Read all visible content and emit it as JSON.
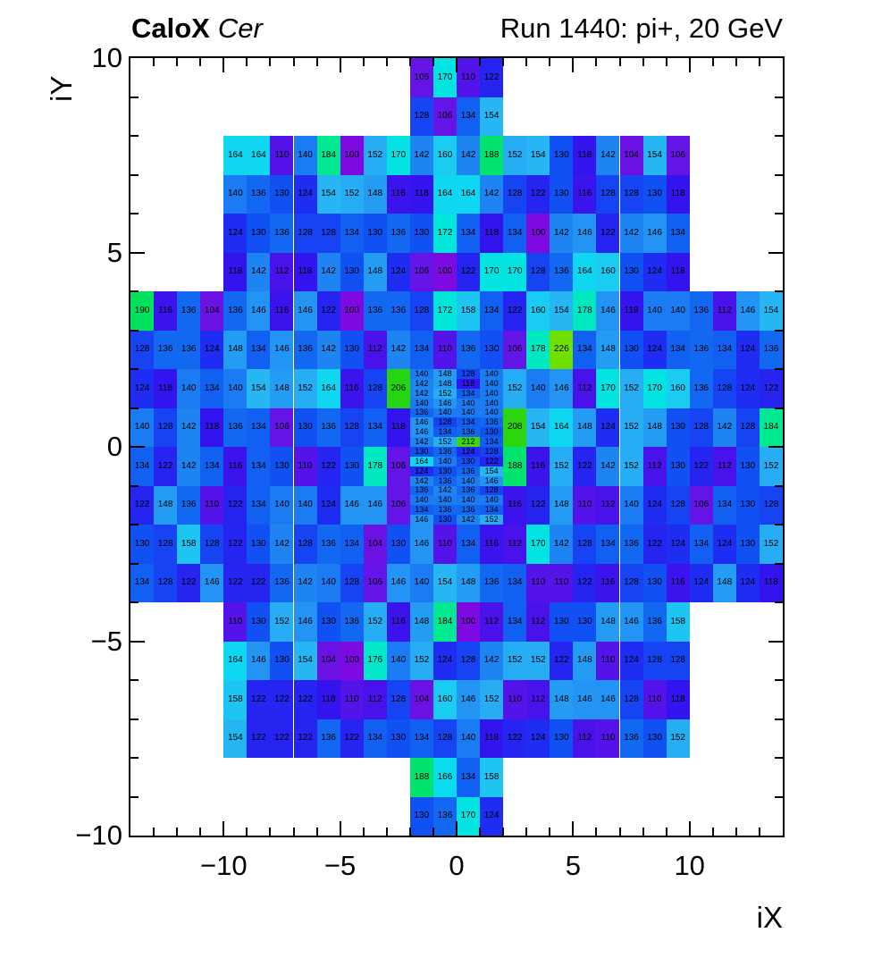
{
  "header": {
    "title_bold": "CaloX",
    "title_italic": "Cer",
    "title_right": "Run 1440: pi+, 20 GeV"
  },
  "chart_data": {
    "type": "heatmap",
    "title": "CaloX Cer",
    "subtitle": "Run 1440: pi+, 20 GeV",
    "xlabel": "iX",
    "ylabel": "iY",
    "x_range": [
      -14,
      14
    ],
    "y_range": [
      -10,
      10
    ],
    "x_ticks": [
      -10,
      -5,
      0,
      5,
      10
    ],
    "y_ticks": [
      10,
      5,
      0,
      -5,
      -10
    ],
    "minor_tick_step": 1,
    "grid": false,
    "legend": "none",
    "z_min": 100,
    "z_max": 226,
    "palette": [
      [
        100,
        "#7d0ae0"
      ],
      [
        106,
        "#6414e6"
      ],
      [
        112,
        "#4a12ea"
      ],
      [
        118,
        "#3414ee"
      ],
      [
        124,
        "#1f2cf2"
      ],
      [
        130,
        "#1150f2"
      ],
      [
        136,
        "#1368f2"
      ],
      [
        142,
        "#1e84f2"
      ],
      [
        148,
        "#259cf4"
      ],
      [
        154,
        "#27b6f4"
      ],
      [
        160,
        "#1accf2"
      ],
      [
        166,
        "#0adcf0"
      ],
      [
        172,
        "#00e6da"
      ],
      [
        178,
        "#00e8c0"
      ],
      [
        184,
        "#00e890"
      ],
      [
        190,
        "#00e25c"
      ],
      [
        196,
        "#00dc35"
      ],
      [
        202,
        "#10d71a"
      ],
      [
        208,
        "#2cd60c"
      ],
      [
        214,
        "#44d806"
      ],
      [
        220,
        "#5cdc02"
      ],
      [
        226,
        "#70e000"
      ]
    ],
    "rows": [
      {
        "iy": 9,
        "segments": [
          {
            "x": -2,
            "values": [
              106,
              170,
              110,
              122
            ]
          }
        ]
      },
      {
        "iy": 8,
        "segments": [
          {
            "x": -2,
            "values": [
              128,
              106,
              134,
              154
            ]
          }
        ]
      },
      {
        "iy": 7,
        "segments": [
          {
            "x": -10,
            "values": [
              164,
              164,
              110,
              140,
              184,
              100,
              152,
              170,
              142,
              160,
              142,
              188,
              152,
              154,
              130,
              118,
              142,
              104,
              154,
              106
            ]
          }
        ]
      },
      {
        "iy": 6,
        "segments": [
          {
            "x": -10,
            "values": [
              140,
              136,
              130,
              124,
              154,
              152,
              148,
              116,
              118,
              164,
              164,
              142,
              128,
              122,
              130,
              116,
              128,
              128,
              130,
              118
            ]
          }
        ]
      },
      {
        "iy": 5,
        "segments": [
          {
            "x": -10,
            "values": [
              124,
              130,
              136,
              128,
              128,
              134,
              130,
              136,
              130,
              172,
              134,
              118,
              134,
              100,
              142,
              146,
              122,
              142,
              146,
              134
            ]
          }
        ]
      },
      {
        "iy": 4,
        "segments": [
          {
            "x": -10,
            "values": [
              118,
              142,
              112,
              118,
              142,
              130,
              148,
              124,
              106,
              100,
              122,
              170,
              170,
              128,
              136,
              164,
              160,
              130,
              124,
              118
            ]
          }
        ]
      },
      {
        "iy": 3,
        "segments": [
          {
            "x": -14,
            "values": [
              190,
              116,
              136,
              104,
              136,
              146,
              116,
              146,
              122,
              100,
              136,
              136,
              128,
              172,
              158,
              134,
              122,
              160,
              154,
              178,
              146,
              118,
              140,
              140,
              136,
              112,
              146,
              154
            ]
          }
        ]
      },
      {
        "iy": 2,
        "segments": [
          {
            "x": -14,
            "values": [
              128,
              136,
              136,
              124,
              148,
              134,
              146,
              136,
              142,
              130,
              112,
              142,
              134,
              110,
              136,
              130,
              106,
              178,
              226,
              134,
              148,
              130,
              124,
              134,
              136,
              134,
              124,
              136
            ]
          }
        ]
      },
      {
        "iy": 1,
        "segments": [
          {
            "x": -14,
            "values": [
              124,
              118,
              140,
              134,
              140,
              154,
              148,
              152,
              164,
              116,
              128,
              206
            ]
          },
          {
            "x": 2,
            "values": [
              152,
              140,
              146,
              112,
              170,
              152,
              170,
              160,
              136,
              128,
              124,
              122
            ]
          }
        ]
      },
      {
        "iy": 0,
        "segments": [
          {
            "x": -14,
            "values": [
              140,
              128,
              142,
              118,
              136,
              134,
              106,
              130,
              136,
              128,
              134,
              118
            ]
          },
          {
            "x": 2,
            "values": [
              208,
              154,
              164,
              148,
              124,
              152,
              148,
              130,
              128,
              142,
              128,
              184
            ]
          }
        ]
      },
      {
        "iy": -1,
        "segments": [
          {
            "x": -14,
            "values": [
              134,
              122,
              142,
              134,
              116,
              134,
              130,
              110,
              122,
              130,
              178,
              106
            ]
          },
          {
            "x": 2,
            "values": [
              188,
              116,
              152,
              122,
              142,
              152,
              112,
              130,
              122,
              112,
              130,
              152
            ]
          }
        ]
      },
      {
        "iy": -2,
        "segments": [
          {
            "x": -14,
            "values": [
              122,
              148,
              136,
              110,
              122,
              134,
              140,
              140,
              124,
              146,
              146,
              106
            ]
          },
          {
            "x": 2,
            "values": [
              116,
              122,
              148,
              110,
              112,
              140,
              124,
              128,
              106,
              134,
              130,
              128
            ]
          }
        ]
      },
      {
        "iy": -3,
        "segments": [
          {
            "x": -14,
            "values": [
              130,
              128,
              158,
              128,
              122,
              130,
              142,
              128,
              136,
              134,
              104,
              130,
              146,
              110,
              134,
              116,
              112,
              170,
              142,
              128,
              134,
              136,
              122,
              124,
              134,
              124,
              130,
              152
            ]
          }
        ]
      },
      {
        "iy": -4,
        "segments": [
          {
            "x": -14,
            "values": [
              134,
              128,
              122,
              146,
              122,
              122,
              136,
              142,
              140,
              128,
              106,
              146,
              140,
              154,
              148,
              136,
              134,
              110,
              110,
              122,
              116,
              128,
              130,
              116,
              124,
              148,
              124,
              118
            ]
          }
        ]
      },
      {
        "iy": -5,
        "segments": [
          {
            "x": -10,
            "values": [
              110,
              130,
              152,
              146,
              130,
              136,
              152,
              116,
              148,
              184,
              100,
              112,
              134,
              112,
              130,
              130,
              148,
              146,
              136,
              158
            ]
          }
        ]
      },
      {
        "iy": -6,
        "segments": [
          {
            "x": -10,
            "values": [
              164,
              146,
              130,
              154,
              104,
              100,
              176,
              140,
              152,
              124,
              128,
              142,
              152,
              152,
              122,
              148,
              110,
              124,
              128,
              128
            ]
          }
        ]
      },
      {
        "iy": -7,
        "segments": [
          {
            "x": -10,
            "values": [
              158,
              122,
              122,
              122,
              118,
              110,
              112,
              128,
              104,
              160,
              146,
              152,
              110,
              112,
              148,
              146,
              146,
              128,
              110,
              118
            ]
          }
        ]
      },
      {
        "iy": -8,
        "segments": [
          {
            "x": -10,
            "values": [
              154,
              122,
              122,
              122,
              136,
              122,
              134,
              130,
              134,
              128,
              140,
              118,
              122,
              124,
              130,
              112,
              110,
              136,
              130,
              152
            ]
          }
        ]
      },
      {
        "iy": -9,
        "segments": [
          {
            "x": -2,
            "values": [
              188,
              166,
              134,
              158
            ]
          }
        ]
      },
      {
        "iy": -10,
        "segments": [
          {
            "x": -2,
            "values": [
              130,
              136,
              170,
              124
            ]
          }
        ]
      }
    ],
    "fine_region": {
      "x": -2,
      "y_top": 2,
      "cols": 4,
      "cell_w": 1,
      "cell_h": 0.25,
      "rows": [
        [
          140,
          148,
          128,
          140
        ],
        [
          142,
          148,
          118,
          140
        ],
        [
          142,
          152,
          134,
          140
        ],
        [
          140,
          146,
          140,
          140
        ],
        [
          136,
          140,
          140,
          140
        ],
        [
          146,
          128,
          134,
          136
        ],
        [
          146,
          134,
          136,
          130
        ],
        [
          142,
          152,
          212,
          134
        ],
        [
          130,
          136,
          124,
          128
        ],
        [
          164,
          140,
          130,
          122
        ],
        [
          124,
          130,
          136,
          154
        ],
        [
          142,
          136,
          140,
          146
        ],
        [
          136,
          142,
          136,
          128
        ],
        [
          140,
          140,
          140,
          140
        ],
        [
          134,
          136,
          136,
          134
        ],
        [
          146,
          130,
          142,
          152
        ]
      ]
    }
  }
}
